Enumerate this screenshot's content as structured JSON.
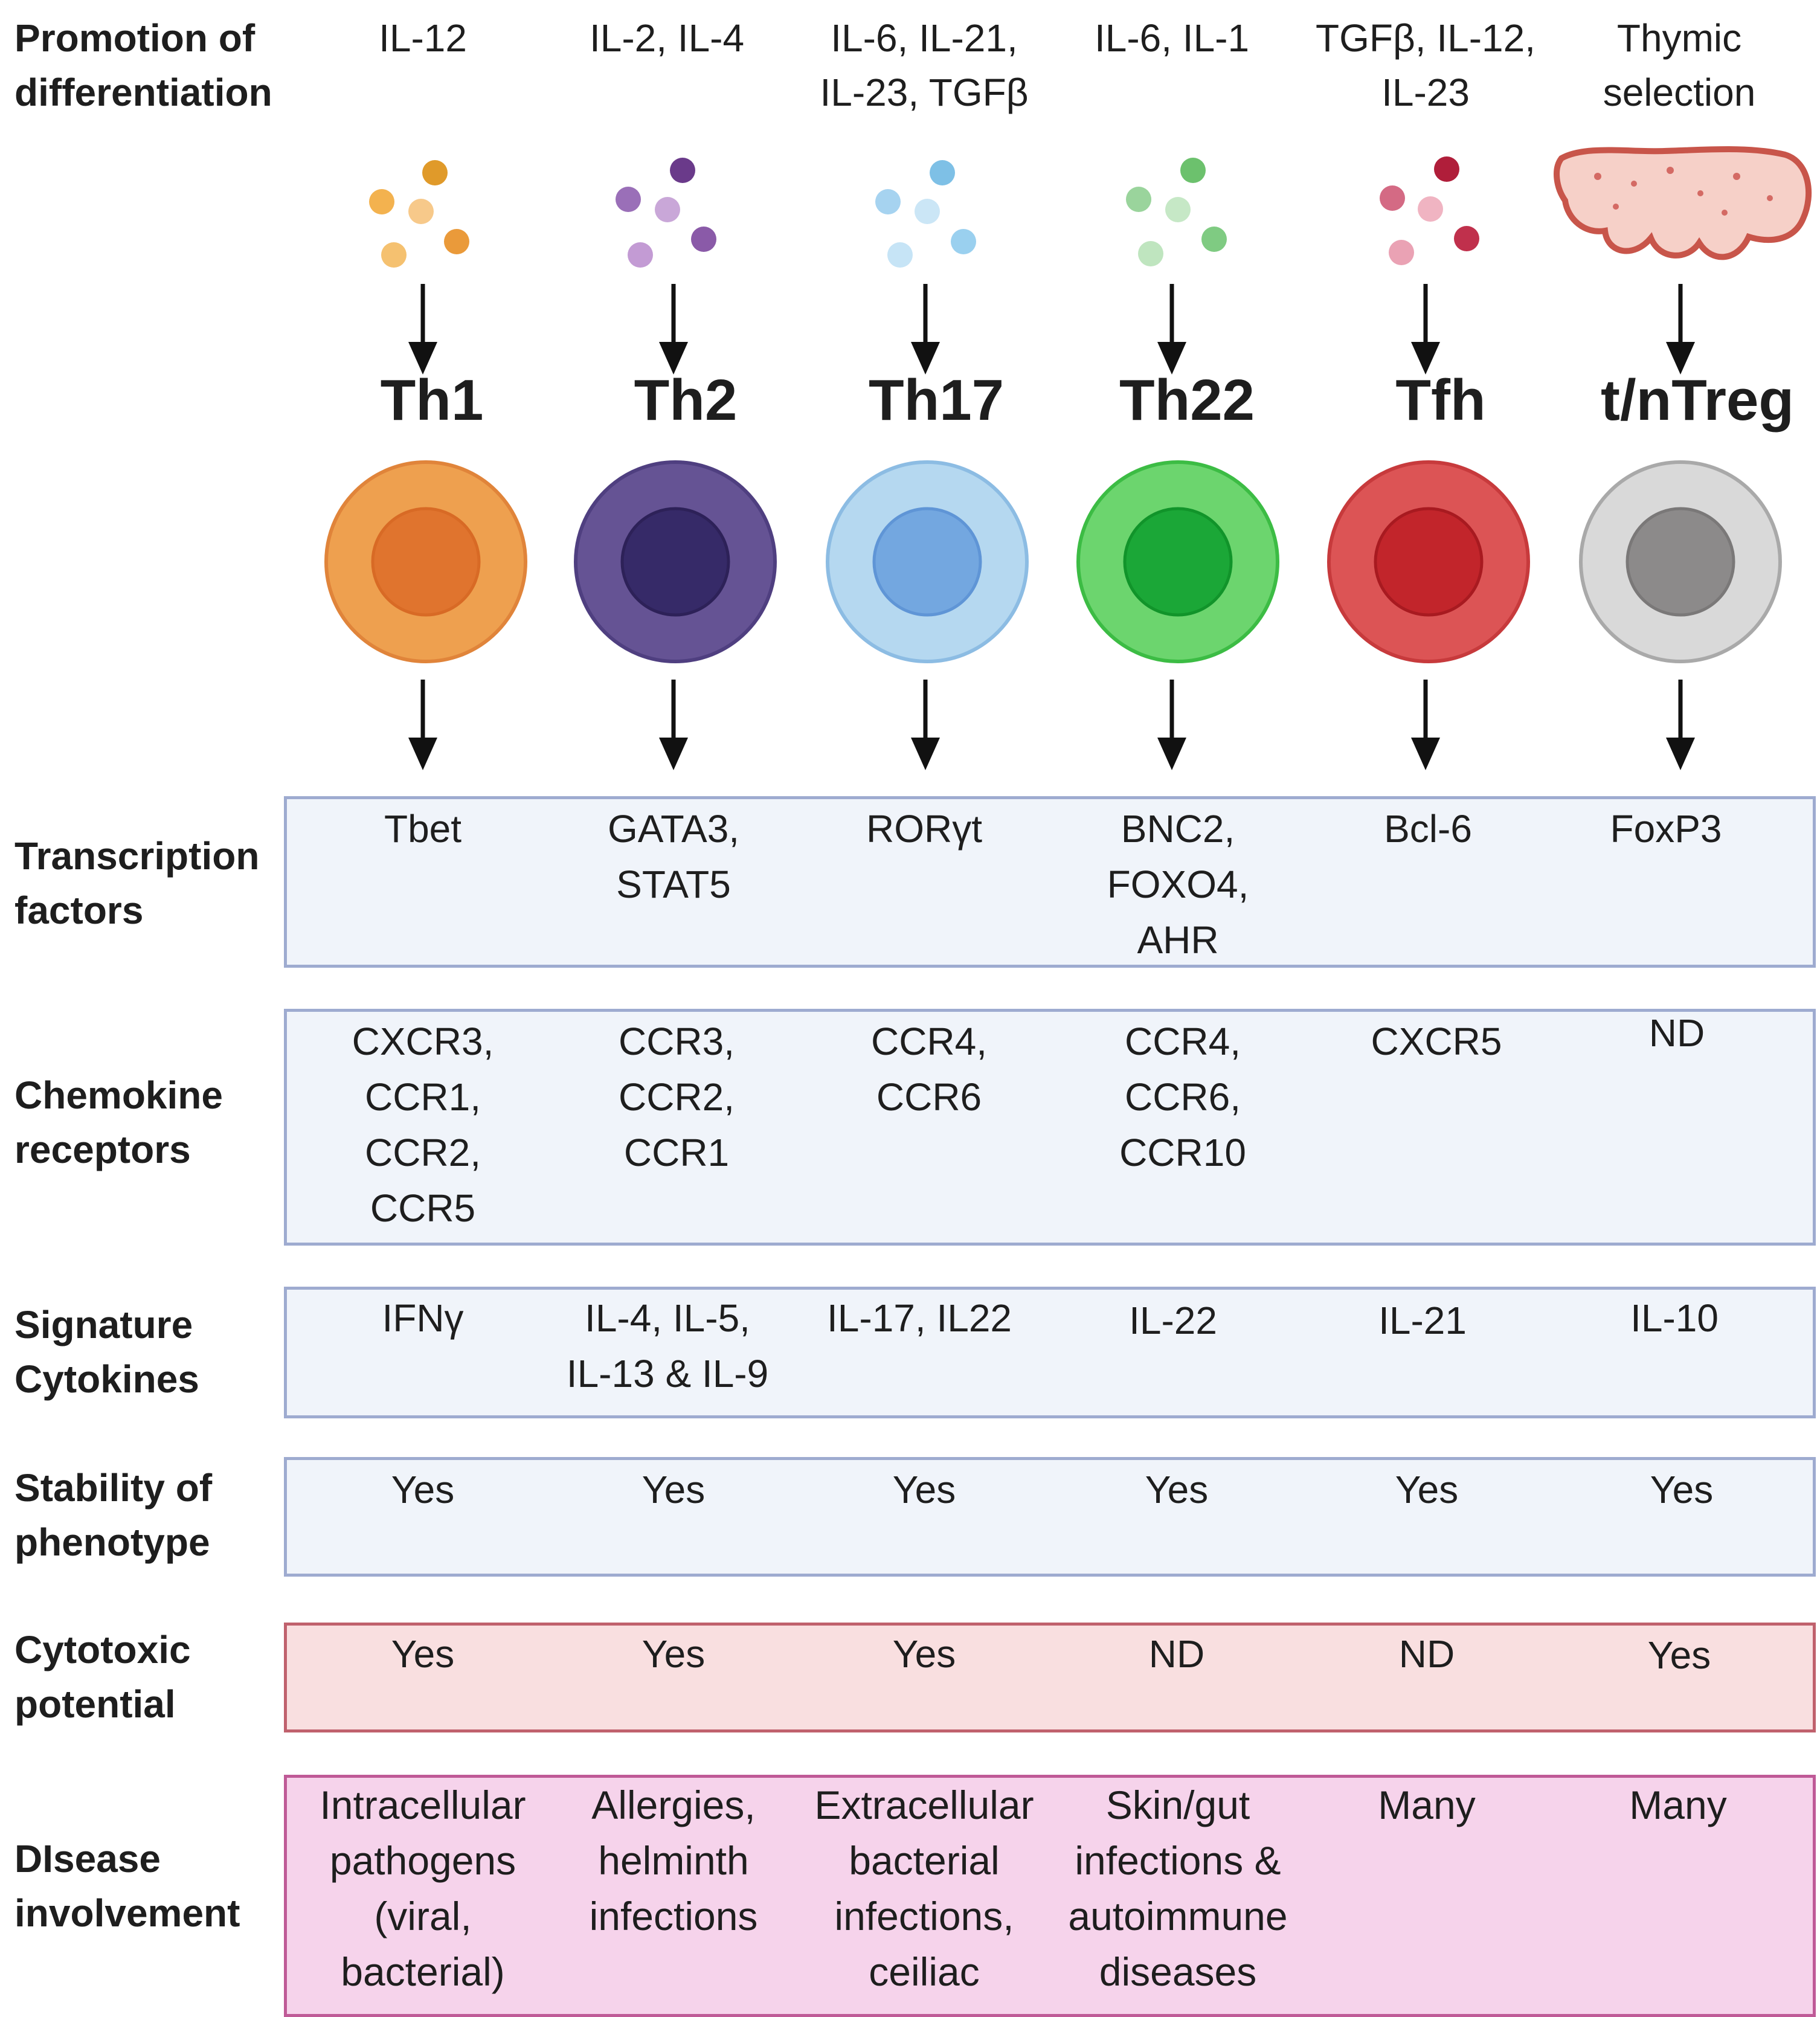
{
  "row_labels": {
    "promotion": [
      "Promotion of",
      "differentiation"
    ],
    "transcription": [
      "Transcription",
      "factors"
    ],
    "chemokine": [
      "Chemokine",
      "receptors"
    ],
    "cytokines": [
      "Signature",
      "Cytokines"
    ],
    "stability": [
      "Stability of",
      "phenotype"
    ],
    "cytotoxic": [
      "Cytotoxic",
      "potential"
    ],
    "disease": [
      "DIsease",
      "involvement"
    ]
  },
  "columns": [
    {
      "name": "Th1",
      "promotion": [
        "IL-12"
      ],
      "transcription": [
        "Tbet"
      ],
      "chemokine": [
        "CXCR3,",
        "CCR1,",
        "CCR2,",
        "CCR5"
      ],
      "cytokines": [
        "IFNγ"
      ],
      "stability": "Yes",
      "cytotoxic": "Yes",
      "disease": [
        "Intracellular",
        "pathogens",
        "(viral,",
        "bacterial)"
      ],
      "colors": {
        "cell": "#eea04f",
        "cell_border": "#e0843a",
        "nucleus": "#e0742e",
        "nucleus_border": "#d86a25",
        "dots": [
          "#e09a2a",
          "#f3b24f",
          "#f7c98a",
          "#f5c170",
          "#ea9a3a"
        ]
      }
    },
    {
      "name": "Th2",
      "promotion": [
        "IL-2, IL-4"
      ],
      "transcription": [
        "GATA3,",
        "STAT5"
      ],
      "chemokine": [
        "CCR3,",
        "CCR2,",
        "CCR1"
      ],
      "cytokines": [
        "IL-4, IL-5,",
        "IL-13 & IL-9"
      ],
      "stability": "Yes",
      "cytotoxic": "Yes",
      "disease": [
        "Allergies,",
        "helminth",
        "infections"
      ],
      "colors": {
        "cell": "#655394",
        "cell_border": "#4f3f80",
        "nucleus": "#362a68",
        "nucleus_border": "#2d2158",
        "dots": [
          "#6a3a8a",
          "#9a6fb8",
          "#c9a7d8",
          "#c39bd4",
          "#8a5aa8"
        ]
      }
    },
    {
      "name": "Th17",
      "promotion": [
        "IL-6, IL-21,",
        "IL-23, TGFβ"
      ],
      "transcription": [
        "RORγt"
      ],
      "chemokine": [
        "CCR4,",
        "CCR6"
      ],
      "cytokines": [
        "IL-17, IL22"
      ],
      "stability": "Yes",
      "cytotoxic": "Yes",
      "disease": [
        "Extracellular",
        "bacterial",
        "infections,",
        "ceiliac"
      ],
      "colors": {
        "cell": "#b5d8f0",
        "cell_border": "#8cbce3",
        "nucleus": "#73a7e0",
        "nucleus_border": "#5f95d6",
        "dots": [
          "#7ec0e6",
          "#a6d3f0",
          "#cbe6f6",
          "#c6e4f6",
          "#9ad0ef"
        ]
      }
    },
    {
      "name": "Th22",
      "promotion": [
        "IL-6, IL-1"
      ],
      "transcription": [
        "BNC2,",
        "FOXO4,",
        "AHR"
      ],
      "chemokine": [
        "CCR4,",
        "CCR6,",
        "CCR10"
      ],
      "cytokines": [
        "IL-22"
      ],
      "stability": "Yes",
      "cytotoxic": "ND",
      "disease": [
        "Skin/gut",
        "infections &",
        "autoimmune",
        "diseases"
      ],
      "colors": {
        "cell": "#6cd56e",
        "cell_border": "#3cbc44",
        "nucleus": "#1ba737",
        "nucleus_border": "#11942a",
        "dots": [
          "#6cc16d",
          "#9ad49c",
          "#c6e8c6",
          "#bfe5bf",
          "#7fcb82"
        ]
      }
    },
    {
      "name": "Tfh",
      "promotion": [
        "TGFβ, IL-12,",
        "IL-23"
      ],
      "transcription": [
        "Bcl-6"
      ],
      "chemokine": [
        "CXCR5"
      ],
      "cytokines": [
        "IL-21"
      ],
      "stability": "Yes",
      "cytotoxic": "ND",
      "disease": [
        "Many"
      ],
      "colors": {
        "cell": "#dc5455",
        "cell_border": "#c73a3c",
        "nucleus": "#c2252b",
        "nucleus_border": "#a81a20",
        "dots": [
          "#b01e3a",
          "#d46a84",
          "#f0b4c2",
          "#eaa2b4",
          "#c0304c"
        ]
      }
    },
    {
      "name": "t/nTreg",
      "promotion": [
        "Thymic",
        "selection"
      ],
      "transcription": [
        "FoxP3"
      ],
      "chemokine": [
        "ND"
      ],
      "cytokines": [
        "IL-10"
      ],
      "stability": "Yes",
      "cytotoxic": "Yes",
      "disease": [
        "Many"
      ],
      "colors": {
        "cell": "#d9d9d9",
        "cell_border": "#a9a9a9",
        "nucleus": "#8c8a8a",
        "nucleus_border": "#7a7878",
        "dots": []
      }
    }
  ],
  "thymus_colors": {
    "fill": "#f6d0c8",
    "stroke": "#c8554a",
    "spots": "#d46a64"
  }
}
